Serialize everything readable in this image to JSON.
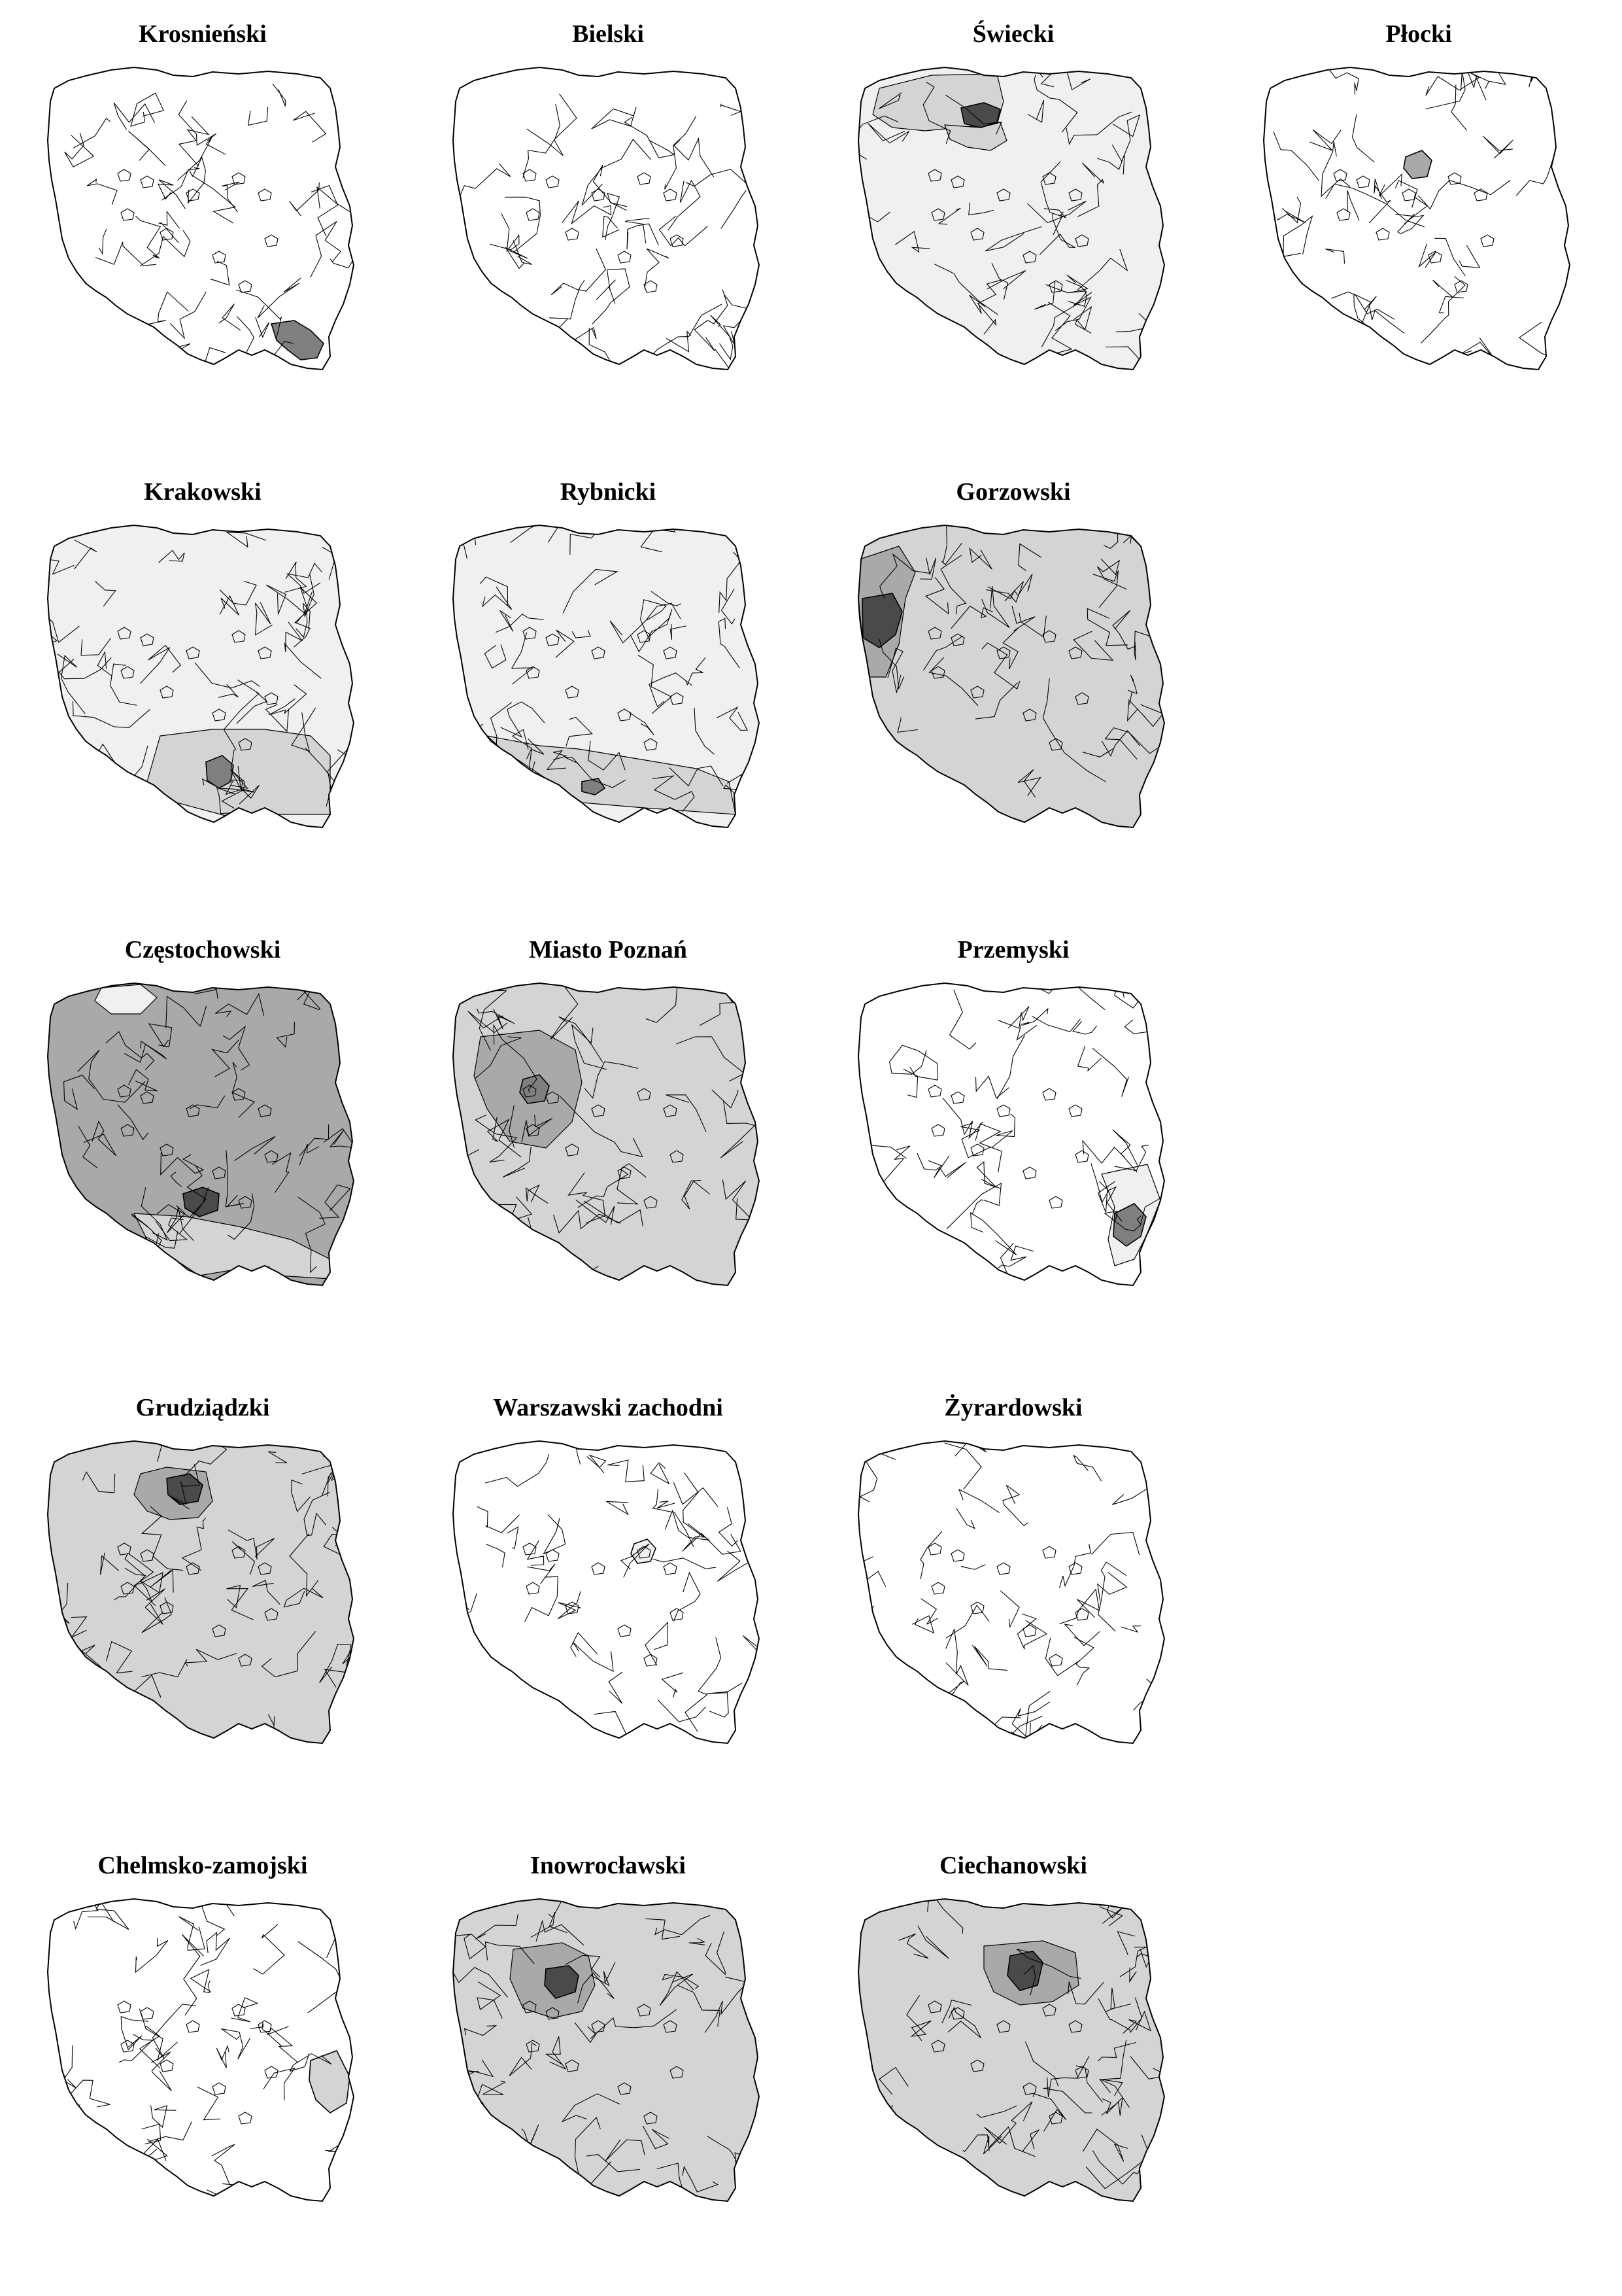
{
  "colors": {
    "none": "#ffffff",
    "light": "#f0f0f0",
    "mid": "#d4d4d4",
    "dark_mid": "#a9a9a9",
    "dark": "#7f7f7f",
    "darkest": "#4a4a4a",
    "border": "#000000"
  },
  "panels": [
    {
      "title": "Krosnieński",
      "background": "none",
      "rings": [],
      "focus": {
        "region": "krosno",
        "level": "dark"
      }
    },
    {
      "title": "Bielski",
      "background": "none",
      "rings": [],
      "focus": null
    },
    {
      "title": "Świecki",
      "background": "light",
      "rings": [
        {
          "level": "mid",
          "region": "north"
        },
        {
          "level": "mid",
          "region": "swiecie-ring"
        }
      ],
      "focus": {
        "region": "swiecie",
        "level": "darkest"
      }
    },
    {
      "title": "Płocki",
      "background": "none",
      "rings": [],
      "focus": {
        "region": "plock",
        "level": "dark_mid"
      }
    },
    {
      "title": "Krakowski",
      "background": "light",
      "rings": [
        {
          "level": "mid",
          "region": "south"
        }
      ],
      "focus": {
        "region": "krakow",
        "level": "dark"
      }
    },
    {
      "title": "Rybnicki",
      "background": "light",
      "rings": [
        {
          "level": "mid",
          "region": "south-west"
        }
      ],
      "focus": {
        "region": "rybnik",
        "level": "dark"
      }
    },
    {
      "title": "Gorzowski",
      "background": "mid",
      "rings": [
        {
          "level": "dark_mid",
          "region": "west"
        }
      ],
      "focus": {
        "region": "gorzow",
        "level": "darkest"
      }
    },
    {
      "title": "Częstochowski",
      "background": "dark_mid",
      "rings": [
        {
          "level": "light",
          "region": "poznan-hole"
        },
        {
          "level": "mid",
          "region": "south-east"
        }
      ],
      "focus": {
        "region": "czestochowa",
        "level": "darkest"
      }
    },
    {
      "title": "Miasto Poznań",
      "background": "mid",
      "rings": [
        {
          "level": "dark_mid",
          "region": "poznan-ring"
        }
      ],
      "focus": {
        "region": "poznan",
        "level": "dark"
      }
    },
    {
      "title": "Przemyski",
      "background": "none",
      "rings": [
        {
          "level": "light",
          "region": "south-east-edge"
        }
      ],
      "focus": {
        "region": "przemysl",
        "level": "dark"
      }
    },
    {
      "title": "Grudziądzki",
      "background": "mid",
      "rings": [
        {
          "level": "dark_mid",
          "region": "grudziadz-ring"
        }
      ],
      "focus": {
        "region": "grudziadz",
        "level": "darkest"
      }
    },
    {
      "title": "Warszawski zachodni",
      "background": "none",
      "rings": [],
      "focus": {
        "region": "warszawa-zach",
        "level": "light"
      }
    },
    {
      "title": "Żyrardowski",
      "background": "none",
      "rings": [],
      "focus": null
    },
    {
      "title": "Chelmsko-zamojski",
      "background": "none",
      "rings": [],
      "focus": {
        "region": "chelm",
        "level": "mid"
      }
    },
    {
      "title": "Inowrocławski",
      "background": "mid",
      "rings": [
        {
          "level": "dark_mid",
          "region": "inowroclaw-ring"
        }
      ],
      "focus": {
        "region": "inowroclaw",
        "level": "darkest"
      }
    },
    {
      "title": "Ciechanowski",
      "background": "mid",
      "rings": [
        {
          "level": "dark_mid",
          "region": "ciechanow-ring"
        }
      ],
      "focus": {
        "region": "ciechanow",
        "level": "darkest"
      }
    }
  ]
}
